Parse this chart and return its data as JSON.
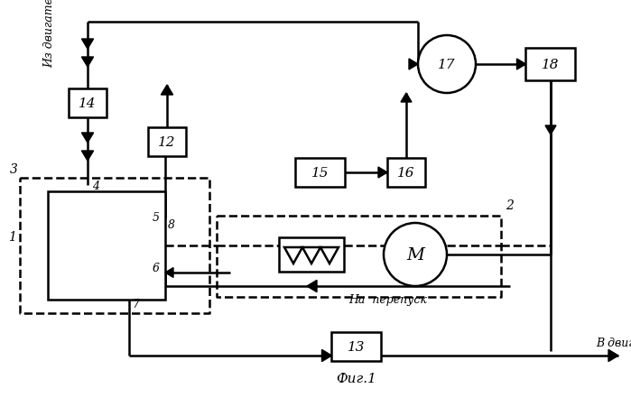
{
  "bg_color": "#ffffff",
  "line_color": "#000000",
  "fig_width": 6.99,
  "fig_height": 4.52,
  "title": "Фиг.1",
  "label_iz_dvigatelya": "Из двигателя",
  "label_v_dvigatel": "В двигатель",
  "label_na_perepusk": "На  перепуск"
}
